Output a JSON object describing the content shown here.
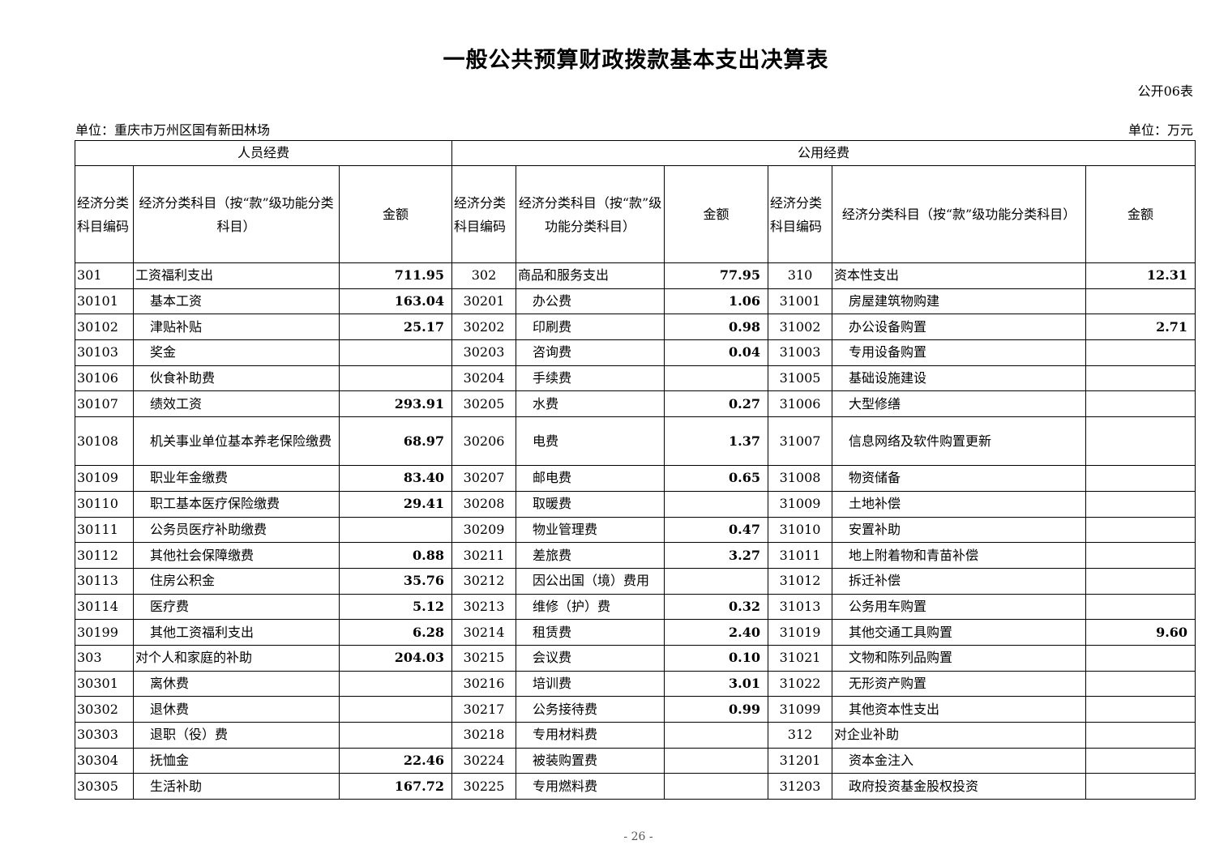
{
  "title": "一般公共预算财政拨款基本支出决算表",
  "table_no": "公开06表",
  "unit_org": "单位：重庆市万州区国有新田林场",
  "unit_money": "单位：万元",
  "groups": {
    "personnel": "人员经费",
    "public": "公用经费"
  },
  "headers": {
    "code1": "经济分类科目编码",
    "name1": "经济分类科目（按“款”级功能分类科目）",
    "amt1": "金额",
    "code2": "经济分类科目编码",
    "name2": "经济分类科目（按“款”级功能分类科目）",
    "amt2": "金额",
    "code3": "经济分类科目编码",
    "name3": "经济分类科目（按“款”级功能分类科目）",
    "amt3": "金额"
  },
  "rows": [
    {
      "c1": "301",
      "n1": "工资福利支出",
      "a1": "711.95",
      "c2": "302",
      "n2": "商品和服务支出",
      "a2": "77.95",
      "c3": "310",
      "n3": "资本性支出",
      "a3": "12.31"
    },
    {
      "c1": "30101",
      "n1": "基本工资",
      "a1": "163.04",
      "c2": "30201",
      "n2": "办公费",
      "a2": "1.06",
      "c3": "31001",
      "n3": "房屋建筑物购建",
      "a3": ""
    },
    {
      "c1": "30102",
      "n1": "津贴补贴",
      "a1": "25.17",
      "c2": "30202",
      "n2": "印刷费",
      "a2": "0.98",
      "c3": "31002",
      "n3": "办公设备购置",
      "a3": "2.71"
    },
    {
      "c1": "30103",
      "n1": "奖金",
      "a1": "",
      "c2": "30203",
      "n2": "咨询费",
      "a2": "0.04",
      "c3": "31003",
      "n3": "专用设备购置",
      "a3": ""
    },
    {
      "c1": "30106",
      "n1": "伙食补助费",
      "a1": "",
      "c2": "30204",
      "n2": "手续费",
      "a2": "",
      "c3": "31005",
      "n3": "基础设施建设",
      "a3": ""
    },
    {
      "c1": "30107",
      "n1": "绩效工资",
      "a1": "293.91",
      "c2": "30205",
      "n2": "水费",
      "a2": "0.27",
      "c3": "31006",
      "n3": "大型修缮",
      "a3": ""
    },
    {
      "c1": "30108",
      "n1": "机关事业单位基本养老保险缴费",
      "a1": "68.97",
      "c2": "30206",
      "n2": "电费",
      "a2": "1.37",
      "c3": "31007",
      "n3": "信息网络及软件购置更新",
      "a3": ""
    },
    {
      "c1": "30109",
      "n1": "职业年金缴费",
      "a1": "83.40",
      "c2": "30207",
      "n2": "邮电费",
      "a2": "0.65",
      "c3": "31008",
      "n3": "物资储备",
      "a3": ""
    },
    {
      "c1": "30110",
      "n1": "职工基本医疗保险缴费",
      "a1": "29.41",
      "c2": "30208",
      "n2": "取暖费",
      "a2": "",
      "c3": "31009",
      "n3": "土地补偿",
      "a3": ""
    },
    {
      "c1": "30111",
      "n1": "公务员医疗补助缴费",
      "a1": "",
      "c2": "30209",
      "n2": "物业管理费",
      "a2": "0.47",
      "c3": "31010",
      "n3": "安置补助",
      "a3": ""
    },
    {
      "c1": "30112",
      "n1": "其他社会保障缴费",
      "a1": "0.88",
      "c2": "30211",
      "n2": "差旅费",
      "a2": "3.27",
      "c3": "31011",
      "n3": "地上附着物和青苗补偿",
      "a3": ""
    },
    {
      "c1": "30113",
      "n1": "住房公积金",
      "a1": "35.76",
      "c2": "30212",
      "n2": "因公出国（境）费用",
      "a2": "",
      "c3": "31012",
      "n3": "拆迁补偿",
      "a3": ""
    },
    {
      "c1": "30114",
      "n1": "医疗费",
      "a1": "5.12",
      "c2": "30213",
      "n2": "维修（护）费",
      "a2": "0.32",
      "c3": "31013",
      "n3": "公务用车购置",
      "a3": ""
    },
    {
      "c1": "30199",
      "n1": "其他工资福利支出",
      "a1": "6.28",
      "c2": "30214",
      "n2": "租赁费",
      "a2": "2.40",
      "c3": "31019",
      "n3": "其他交通工具购置",
      "a3": "9.60"
    },
    {
      "c1": "303",
      "n1": "对个人和家庭的补助",
      "a1": "204.03",
      "c2": "30215",
      "n2": "会议费",
      "a2": "0.10",
      "c3": "31021",
      "n3": "文物和陈列品购置",
      "a3": ""
    },
    {
      "c1": "30301",
      "n1": "离休费",
      "a1": "",
      "c2": "30216",
      "n2": "培训费",
      "a2": "3.01",
      "c3": "31022",
      "n3": "无形资产购置",
      "a3": ""
    },
    {
      "c1": "30302",
      "n1": "退休费",
      "a1": "",
      "c2": "30217",
      "n2": "公务接待费",
      "a2": "0.99",
      "c3": "31099",
      "n3": "其他资本性支出",
      "a3": ""
    },
    {
      "c1": "30303",
      "n1": "退职（役）费",
      "a1": "",
      "c2": "30218",
      "n2": "专用材料费",
      "a2": "",
      "c3": "312",
      "n3": "对企业补助",
      "a3": ""
    },
    {
      "c1": "30304",
      "n1": "抚恤金",
      "a1": "22.46",
      "c2": "30224",
      "n2": "被装购置费",
      "a2": "",
      "c3": "31201",
      "n3": "资本金注入",
      "a3": ""
    },
    {
      "c1": "30305",
      "n1": "生活补助",
      "a1": "167.72",
      "c2": "30225",
      "n2": "专用燃料费",
      "a2": "",
      "c3": "31203",
      "n3": "政府投资基金股权投资",
      "a3": ""
    }
  ],
  "page_number": "- 26 -"
}
